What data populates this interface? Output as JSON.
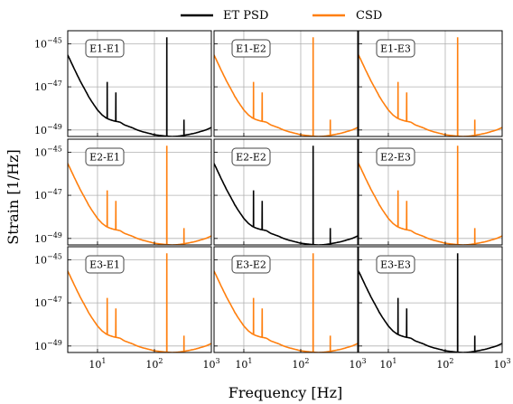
{
  "chart_data": {
    "type": "line",
    "layout": {
      "rows": 3,
      "cols": 3
    },
    "xlabel": "Frequency [Hz]",
    "ylabel": "Strain [1/Hz]",
    "x_scale": "log",
    "y_scale": "log",
    "xlim": [
      3,
      1000
    ],
    "ylim": [
      5e-50,
      4e-45
    ],
    "x_ticks": [
      {
        "value": 10,
        "label": "10",
        "exp": "1"
      },
      {
        "value": 100,
        "label": "10",
        "exp": "2"
      },
      {
        "value": 1000,
        "label": "10",
        "exp": "3"
      }
    ],
    "y_ticks": [
      {
        "value": 1e-45,
        "label": "10",
        "exp": "−45"
      },
      {
        "value": 1e-47,
        "label": "10",
        "exp": "−47"
      },
      {
        "value": 1e-49,
        "label": "10",
        "exp": "−49"
      }
    ],
    "grid": true,
    "legend": {
      "position": "top-center",
      "entries": [
        {
          "name": "ET PSD",
          "color": "#000000"
        },
        {
          "name": "CSD",
          "color": "#ff7f0e"
        }
      ]
    },
    "base_curve": {
      "x": [
        3,
        4,
        5,
        6,
        7,
        8,
        10,
        12,
        14,
        16,
        18,
        20,
        25,
        30,
        40,
        50,
        60,
        80,
        100,
        130,
        160,
        200,
        250,
        300,
        400,
        500,
        600,
        800,
        1000
      ],
      "y": [
        3e-46,
        6e-47,
        1.8e-47,
        7.5e-48,
        3.5e-48,
        2e-48,
        8.5e-49,
        5e-49,
        3.7e-49,
        3.1e-49,
        2.8e-49,
        2.6e-49,
        2.3e-49,
        1.7e-49,
        1.3e-49,
        1e-49,
        8.5e-50,
        7e-50,
        6e-50,
        5.5e-50,
        5.2e-50,
        5e-50,
        5.1e-50,
        5.4e-50,
        6.2e-50,
        7e-50,
        8e-50,
        1e-49,
        1.3e-49
      ]
    },
    "spectral_lines": [
      {
        "x": 14.8,
        "peak": 1.7e-47
      },
      {
        "x": 21.0,
        "peak": 5.5e-48
      },
      {
        "x": 165.0,
        "peak": 2e-45
      },
      {
        "x": 330.0,
        "peak": 3e-49
      }
    ],
    "panels": [
      {
        "label": "E1-E1",
        "series": "ET PSD",
        "color": "#000000"
      },
      {
        "label": "E1-E2",
        "series": "CSD",
        "color": "#ff7f0e"
      },
      {
        "label": "E1-E3",
        "series": "CSD",
        "color": "#ff7f0e"
      },
      {
        "label": "E2-E1",
        "series": "CSD",
        "color": "#ff7f0e"
      },
      {
        "label": "E2-E2",
        "series": "ET PSD",
        "color": "#000000"
      },
      {
        "label": "E2-E3",
        "series": "CSD",
        "color": "#ff7f0e"
      },
      {
        "label": "E3-E1",
        "series": "CSD",
        "color": "#ff7f0e"
      },
      {
        "label": "E3-E2",
        "series": "CSD",
        "color": "#ff7f0e"
      },
      {
        "label": "E3-E3",
        "series": "ET PSD",
        "color": "#000000"
      }
    ]
  }
}
